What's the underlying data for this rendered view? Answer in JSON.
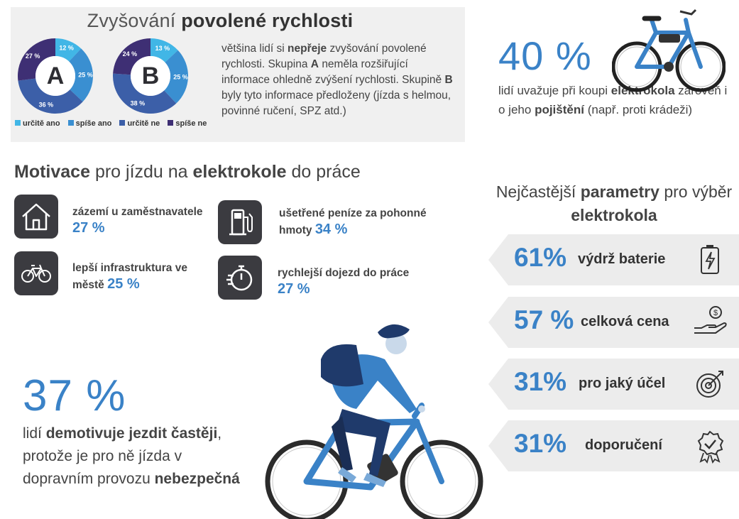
{
  "speed": {
    "title_light": "Zvyšování",
    "title_bold": "povolené rychlosti",
    "text": {
      "p1": "většina lidí si",
      "p1b": "nepřeje",
      "p2": "zvyšování povolené rychlosti. Skupina",
      "p2b": "A",
      "p3": "neměla rozšiřující informace ohledně zvýšení rychlosti. Skupině",
      "p3b": "B",
      "p4": "byly tyto informace předloženy (jízda s helmou, povinné ručení, SPZ atd.)"
    },
    "legend": [
      "určitě ano",
      "spíše ano",
      "určitě ne",
      "spíše ne"
    ],
    "colors": [
      "#41b6e6",
      "#3a8fd1",
      "#3c5fa8",
      "#3e2f74"
    ]
  },
  "stat40": {
    "value": "40 %",
    "t1": "lidí uvažuje při koupi",
    "t1b": "elektrokola",
    "t2": "zároveň i o jeho",
    "t2b": "pojištění",
    "t3": "(např. proti krádeži)"
  },
  "motivation": {
    "title_b1": "Motivace",
    "title_n1": "pro jízdu na",
    "title_b2": "elektrokole",
    "title_n2": "do práce",
    "items": [
      {
        "label": "zázemí u zaměstnavatele",
        "pct": "27 %",
        "icon": "house-icon"
      },
      {
        "label": "ušetřené peníze za pohonné hmoty",
        "pct": "34 %",
        "icon": "fuel-pump-icon"
      },
      {
        "label": "lepší infrastruktura ve městě",
        "pct": "25 %",
        "icon": "bicycle-icon"
      },
      {
        "label": "rychlejší dojezd do práce",
        "pct": "27 %",
        "icon": "stopwatch-icon"
      }
    ]
  },
  "params": {
    "title_n1": "Nejčastější",
    "title_b1": "parametry",
    "title_n2": "pro výběr",
    "title_b2": "elektrokola",
    "items": [
      {
        "pct": "61%",
        "label": "výdrž baterie",
        "icon": "battery-icon"
      },
      {
        "pct": "57 %",
        "label": "celková cena",
        "icon": "money-hand-icon"
      },
      {
        "pct": "31%",
        "label": "pro jaký účel",
        "icon": "target-icon"
      },
      {
        "pct": "31%",
        "label": "doporučení",
        "icon": "badge-check-icon"
      }
    ]
  },
  "stat37": {
    "value": "37 %",
    "t1": "lidí",
    "t1b": "demotivuje jezdit častěji",
    "t2": ", protože je pro ně jízda v dopravním provozu",
    "t2b": "nebezpečná"
  },
  "chart_data": [
    {
      "type": "pie",
      "title": "A",
      "categories": [
        "určitě ano",
        "spíše ano",
        "určitě ne",
        "spíše ne"
      ],
      "values": [
        12,
        25,
        36,
        27
      ],
      "labels": [
        "12 %",
        "25 %",
        "36 %",
        "27 %"
      ]
    },
    {
      "type": "pie",
      "title": "B",
      "categories": [
        "určitě ano",
        "spíše ano",
        "určitě ne",
        "spíše ne"
      ],
      "values": [
        13,
        25,
        38,
        24
      ],
      "labels": [
        "13 %",
        "25 %",
        "38 %",
        "24 %"
      ]
    }
  ]
}
